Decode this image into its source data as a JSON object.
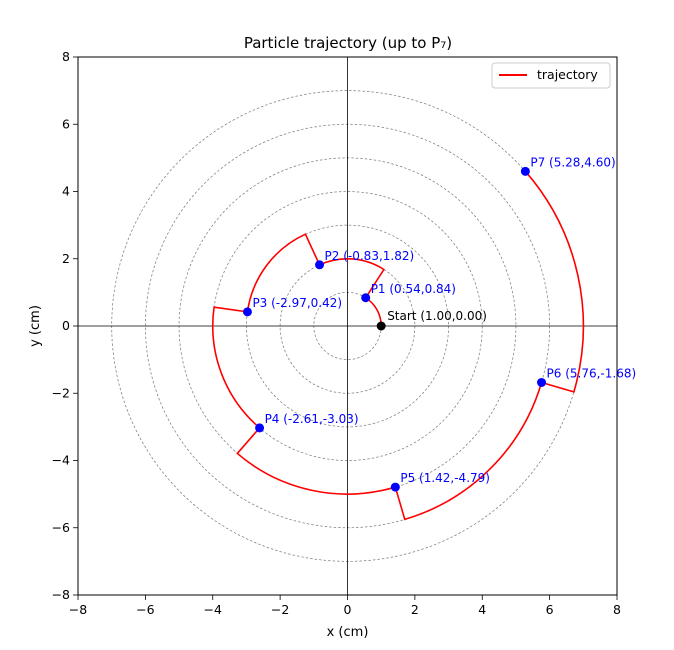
{
  "chart_data": {
    "type": "scatter",
    "title": "Particle trajectory (up to P₇)",
    "xlabel": "x (cm)",
    "ylabel": "y (cm)",
    "xlim": [
      -8,
      8
    ],
    "ylim": [
      -8,
      8
    ],
    "xticks": [
      -8,
      -6,
      -4,
      -2,
      0,
      2,
      4,
      6,
      8
    ],
    "yticks": [
      -8,
      -6,
      -4,
      -2,
      0,
      2,
      4,
      6,
      8
    ],
    "xtick_labels": [
      "−8",
      "−6",
      "−4",
      "−2",
      "0",
      "2",
      "4",
      "6",
      "8"
    ],
    "ytick_labels": [
      "−8",
      "−6",
      "−4",
      "−2",
      "0",
      "2",
      "4",
      "6",
      "8"
    ],
    "guide_circle_radii": [
      1,
      2,
      3,
      4,
      5,
      6,
      7
    ],
    "guide_axes": true,
    "legend": {
      "placement": "top-right",
      "entries": [
        {
          "label": "trajectory",
          "color": "#ff0000"
        }
      ]
    },
    "trajectory": {
      "name": "trajectory",
      "color": "#ff0000",
      "points": [
        [
          1.0,
          0.0
        ],
        [
          0.54,
          0.84
        ],
        [
          1.08,
          1.68
        ],
        [
          -0.83,
          1.82
        ],
        [
          -1.25,
          2.73
        ],
        [
          -2.97,
          0.42
        ],
        [
          -3.96,
          0.56
        ],
        [
          -2.61,
          -3.03
        ],
        [
          -3.27,
          -3.79
        ],
        [
          1.42,
          -4.79
        ],
        [
          1.7,
          -5.75
        ],
        [
          5.76,
          -1.68
        ],
        [
          6.72,
          -1.96
        ],
        [
          5.28,
          4.6
        ]
      ]
    },
    "arc_segments": [
      {
        "r": 1,
        "from": [
          1.0,
          0.0
        ],
        "to": [
          0.54,
          0.84
        ]
      },
      {
        "r": 2,
        "from": [
          1.08,
          1.68
        ],
        "to": [
          -0.83,
          1.82
        ]
      },
      {
        "r": 3,
        "from": [
          -1.25,
          2.73
        ],
        "to": [
          -2.97,
          0.42
        ]
      },
      {
        "r": 4,
        "from": [
          -3.96,
          0.56
        ],
        "to": [
          -2.61,
          -3.03
        ]
      },
      {
        "r": 5,
        "from": [
          -3.27,
          -3.79
        ],
        "to": [
          1.42,
          -4.79
        ]
      },
      {
        "r": 6,
        "from": [
          1.7,
          -5.75
        ],
        "to": [
          5.76,
          -1.68
        ]
      },
      {
        "r": 7,
        "from": [
          6.72,
          -1.96
        ],
        "to": [
          5.28,
          4.6
        ]
      }
    ],
    "start_point": {
      "x": 1.0,
      "y": 0.0,
      "label": "Start (1.00,0.00)",
      "color": "#000000"
    },
    "points": [
      {
        "name": "P1",
        "x": 0.54,
        "y": 0.84,
        "label": "P1 (0.54,0.84)",
        "color": "#0000ff"
      },
      {
        "name": "P2",
        "x": -0.83,
        "y": 1.82,
        "label": "P2 (-0.83,1.82)",
        "color": "#0000ff"
      },
      {
        "name": "P3",
        "x": -2.97,
        "y": 0.42,
        "label": "P3 (-2.97,0.42)",
        "color": "#0000ff"
      },
      {
        "name": "P4",
        "x": -2.61,
        "y": -3.03,
        "label": "P4 (-2.61,-3.03)",
        "color": "#0000ff"
      },
      {
        "name": "P5",
        "x": 1.42,
        "y": -4.79,
        "label": "P5 (1.42,-4.79)",
        "color": "#0000ff"
      },
      {
        "name": "P6",
        "x": 5.76,
        "y": -1.68,
        "label": "P6 (5.76,-1.68)",
        "color": "#0000ff"
      },
      {
        "name": "P7",
        "x": 5.28,
        "y": 4.6,
        "label": "P7 (5.28,4.60)",
        "color": "#0000ff"
      }
    ]
  }
}
